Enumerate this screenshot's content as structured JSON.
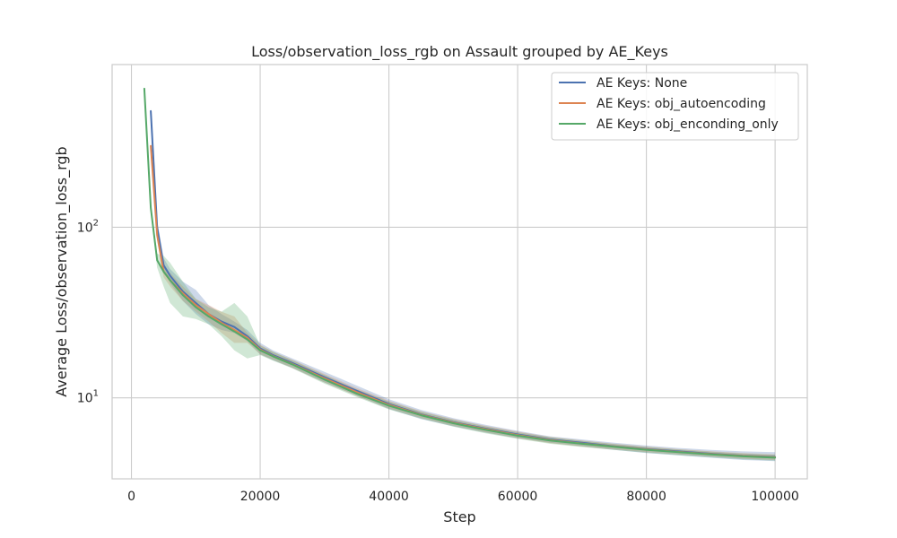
{
  "chart_data": {
    "type": "line",
    "title": "Loss/observation_loss_rgb on Assault grouped by AE_Keys",
    "xlabel": "Step",
    "ylabel": "Average Loss/observation_loss_rgb",
    "xlim": [
      -3000,
      105000
    ],
    "ylim": [
      3.35,
      900
    ],
    "yscale": "log",
    "grid": true,
    "legend_position": "top-right",
    "x_ticks": [
      0,
      20000,
      40000,
      60000,
      80000,
      100000
    ],
    "x_tick_labels": [
      "0",
      "20000",
      "40000",
      "60000",
      "80000",
      "100000"
    ],
    "y_ticks": [
      10,
      100
    ],
    "y_tick_labels": [
      {
        "base": "10",
        "exp": "1"
      },
      {
        "base": "10",
        "exp": "2"
      }
    ],
    "series": [
      {
        "name": "AE Keys: None",
        "color": "#4c72b0",
        "x": [
          3000,
          4000,
          5000,
          6000,
          8000,
          10000,
          12000,
          14000,
          16000,
          18000,
          20000,
          22000,
          25000,
          30000,
          35000,
          40000,
          45000,
          50000,
          55000,
          60000,
          65000,
          70000,
          75000,
          80000,
          85000,
          90000,
          95000,
          100000
        ],
        "y": [
          480,
          100,
          60,
          52,
          42,
          36,
          31,
          28,
          26,
          23,
          19.5,
          17.8,
          16,
          13.2,
          11,
          9.2,
          8,
          7.2,
          6.6,
          6.1,
          5.7,
          5.45,
          5.2,
          5.0,
          4.85,
          4.7,
          4.58,
          4.5
        ],
        "upper": [
          500,
          110,
          66,
          57,
          48,
          43,
          35,
          31,
          28,
          25,
          21,
          19,
          17,
          14.2,
          11.8,
          9.8,
          8.5,
          7.6,
          6.95,
          6.4,
          5.95,
          5.7,
          5.45,
          5.25,
          5.08,
          4.95,
          4.85,
          4.8
        ],
        "lower": [
          460,
          92,
          55,
          47,
          37,
          31,
          27,
          25,
          24,
          21.5,
          18,
          16.6,
          15,
          12.3,
          10.3,
          8.6,
          7.5,
          6.8,
          6.25,
          5.8,
          5.45,
          5.2,
          4.95,
          4.75,
          4.6,
          4.45,
          4.32,
          4.25
        ]
      },
      {
        "name": "AE Keys: obj_autoencoding",
        "color": "#dd8452",
        "x": [
          3000,
          4000,
          5000,
          6000,
          8000,
          10000,
          12000,
          14000,
          16000,
          18000,
          20000,
          22000,
          25000,
          30000,
          35000,
          40000,
          45000,
          50000,
          55000,
          60000,
          65000,
          70000,
          75000,
          80000,
          85000,
          90000,
          95000,
          100000
        ],
        "y": [
          300,
          90,
          55,
          49,
          41,
          35,
          31,
          27.5,
          25,
          22.5,
          19.2,
          17.6,
          15.8,
          13,
          10.8,
          9.1,
          7.95,
          7.15,
          6.55,
          6.05,
          5.65,
          5.4,
          5.18,
          4.98,
          4.82,
          4.68,
          4.56,
          4.48
        ],
        "upper": [
          320,
          98,
          60,
          54,
          45,
          38,
          35,
          32,
          30,
          24,
          20.5,
          18.6,
          16.7,
          13.8,
          11.4,
          9.6,
          8.35,
          7.5,
          6.85,
          6.35,
          5.9,
          5.62,
          5.38,
          5.18,
          5.0,
          4.86,
          4.74,
          4.66
        ],
        "lower": [
          285,
          84,
          51,
          45,
          37,
          32,
          28,
          24,
          21,
          21,
          18,
          16.7,
          15,
          12.3,
          10.25,
          8.65,
          7.6,
          6.85,
          6.28,
          5.8,
          5.42,
          5.18,
          4.98,
          4.8,
          4.65,
          4.52,
          4.4,
          4.32
        ]
      },
      {
        "name": "AE Keys: obj_enconding_only",
        "color": "#55a868",
        "x": [
          2000,
          3000,
          4000,
          5000,
          6000,
          8000,
          10000,
          12000,
          14000,
          16000,
          18000,
          20000,
          22000,
          25000,
          30000,
          35000,
          40000,
          45000,
          50000,
          55000,
          60000,
          65000,
          70000,
          75000,
          80000,
          85000,
          90000,
          95000,
          100000
        ],
        "y": [
          650,
          130,
          64,
          55,
          49,
          40,
          34,
          30,
          27,
          24.5,
          22,
          19,
          17.5,
          15.7,
          12.8,
          10.6,
          9.0,
          7.9,
          7.1,
          6.5,
          6.0,
          5.62,
          5.38,
          5.16,
          4.96,
          4.8,
          4.66,
          4.54,
          4.46
        ],
        "upper": [
          670,
          138,
          70,
          68,
          62,
          48,
          38,
          34,
          32,
          36,
          30,
          20.3,
          18.6,
          16.6,
          13.6,
          11.2,
          9.5,
          8.3,
          7.45,
          6.8,
          6.28,
          5.88,
          5.6,
          5.36,
          5.15,
          4.98,
          4.83,
          4.72,
          4.64
        ],
        "lower": [
          630,
          122,
          58,
          45,
          36,
          30,
          29,
          27,
          23,
          19,
          17,
          17.8,
          16.5,
          14.9,
          12.1,
          10.1,
          8.55,
          7.55,
          6.78,
          6.2,
          5.75,
          5.38,
          5.15,
          4.95,
          4.76,
          4.6,
          4.48,
          4.36,
          4.28
        ]
      }
    ]
  }
}
